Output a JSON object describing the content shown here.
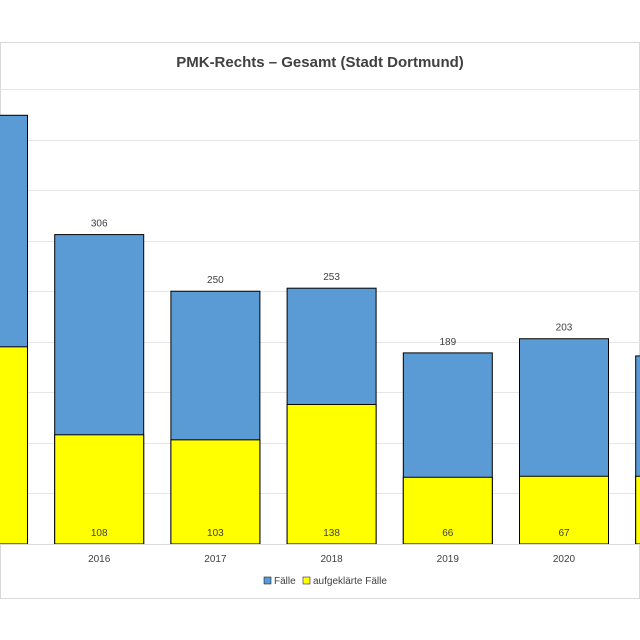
{
  "chart_data": {
    "type": "bar",
    "stacked": "overlay",
    "title": "PMK-Rechts – Gesamt (Stadt Dortmund)",
    "xlabel": "",
    "ylabel": "",
    "categories": [
      "",
      "2016",
      "2017",
      "2018",
      "2019",
      "2020",
      ""
    ],
    "ylim": [
      0,
      450
    ],
    "grid": true,
    "legend": "bottom-center",
    "series": [
      {
        "name": "Fälle",
        "color": "#5b9bd5",
        "values": [
          424,
          306,
          250,
          253,
          189,
          203,
          186
        ],
        "labels": [
          "",
          "306",
          "250",
          "253",
          "189",
          "203",
          ""
        ]
      },
      {
        "name": "aufgeklärte Fälle",
        "color": "#ffff00",
        "values": [
          195,
          108,
          103,
          138,
          66,
          67,
          67
        ],
        "labels": [
          "",
          "108",
          "103",
          "138",
          "66",
          "67",
          ""
        ]
      }
    ]
  }
}
